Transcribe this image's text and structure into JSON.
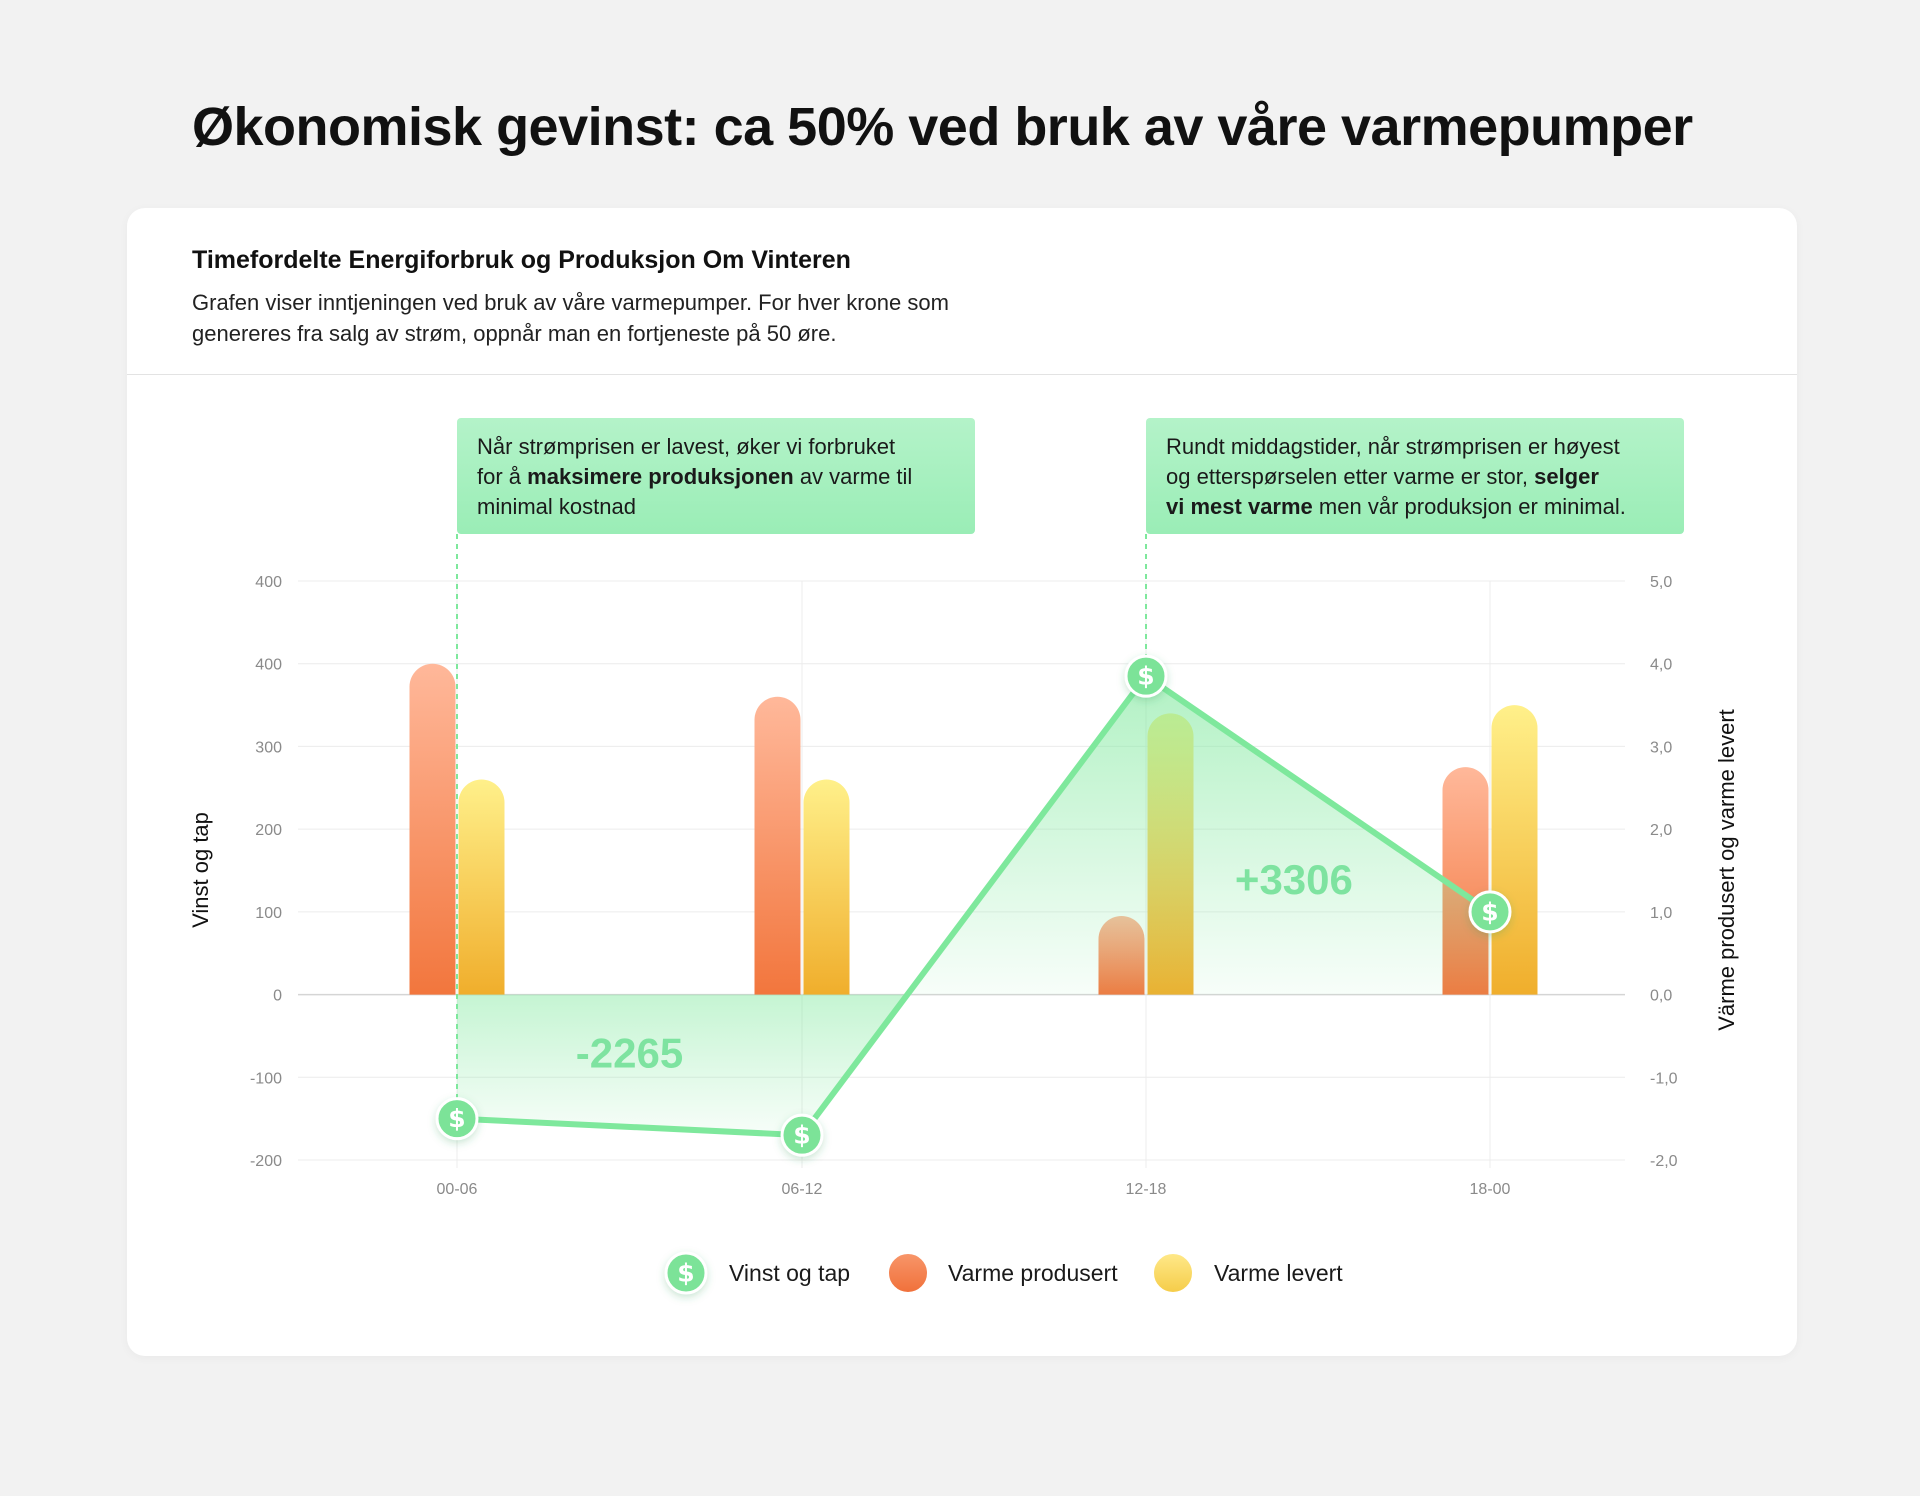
{
  "page": {
    "title": "Økonomisk gevinst: ca 50% ved bruk av våre varmepumper"
  },
  "card": {
    "title": "Timefordelte Energiforbruk og Produksjon Om Vinteren",
    "description": "Grafen viser inntjeningen ved bruk av våre varmepumper. For hver krone som genereres fra salg av strøm, oppnår man en fortjeneste på 50 øre."
  },
  "chart_data": {
    "type": "bar",
    "categories": [
      "00-06",
      "06-12",
      "12-18",
      "18-00"
    ],
    "left_axis": {
      "label": "Vinst og tap",
      "tick_labels": [
        "-200",
        "-100",
        "0",
        "100",
        "200",
        "300",
        "400",
        "400"
      ]
    },
    "right_axis": {
      "label": "Värme produsert og varme levert",
      "tick_labels": [
        "-2,0",
        "-1,0",
        "0,0",
        "1,0",
        "2,0",
        "3,0",
        "4,0",
        "5,0"
      ],
      "ylim": [
        -2,
        5
      ]
    },
    "series": [
      {
        "name": "Varme produsert",
        "type": "bar",
        "axis": "right",
        "values": [
          4.0,
          3.6,
          0.95,
          2.75
        ]
      },
      {
        "name": "Varme levert",
        "type": "bar",
        "axis": "right",
        "values": [
          2.6,
          2.6,
          3.4,
          3.5
        ]
      },
      {
        "name": "Vinst og tap",
        "type": "line",
        "axis": "right",
        "values": [
          -1.5,
          -1.7,
          3.85,
          1.0
        ]
      }
    ],
    "area_labels": [
      {
        "text": "-2265",
        "x": 0.5,
        "y": -0.7
      },
      {
        "text": "+3306",
        "x": 2.43,
        "y": 1.4
      }
    ],
    "annotations": [
      {
        "category_index": 0,
        "before": "Når strømprisen er lavest, øker vi forbruket for å ",
        "bold": "maksimere produksjonen",
        "after": " av varme til minimal kostnad"
      },
      {
        "category_index": 2,
        "before": "Rundt middagstider, når strømprisen er høyest og etterspørselen etter varme er stor, ",
        "bold": "selger vi mest varme",
        "after": " men vår produksjon er minimal."
      }
    ],
    "legend": [
      "Vinst og tap",
      "Varme produsert",
      "Varme levert"
    ],
    "legend_placement": "bottom-center",
    "grid": true,
    "colors": {
      "profit_line": "#7ee89c",
      "profit_marker": "#7be398",
      "produced_top": "#ffb89a",
      "produced_bottom": "#f2763d",
      "delivered_top": "#fff08a",
      "delivered_bottom": "#f0ae2c",
      "annotation_bg": "#a6f0c0",
      "area_label": "#7ee3a0"
    }
  }
}
